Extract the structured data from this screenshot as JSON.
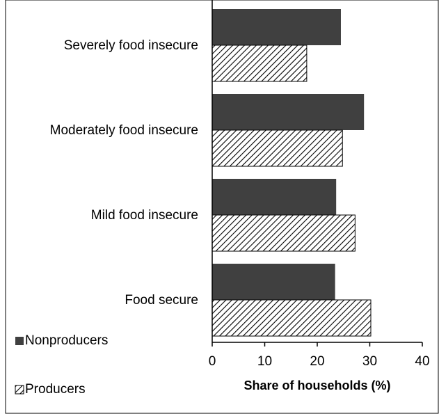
{
  "chart_data": {
    "type": "hbar",
    "xlabel": "Share of households (%)",
    "categories": [
      "Severely food insecure",
      "Moderately food insecure",
      "Mild food insecure",
      "Food secure"
    ],
    "series": [
      {
        "name": "Nonproducers",
        "color": "#404040",
        "hatch": false,
        "values": [
          24.5,
          28.9,
          23.6,
          23.4
        ]
      },
      {
        "name": "Producers",
        "color": "#000000",
        "hatch": true,
        "values": [
          18.0,
          24.8,
          27.2,
          30.2
        ]
      }
    ],
    "xlim": [
      0,
      40
    ],
    "xticks": [
      0,
      10,
      20,
      30,
      40
    ],
    "legend": "bottom-left"
  }
}
